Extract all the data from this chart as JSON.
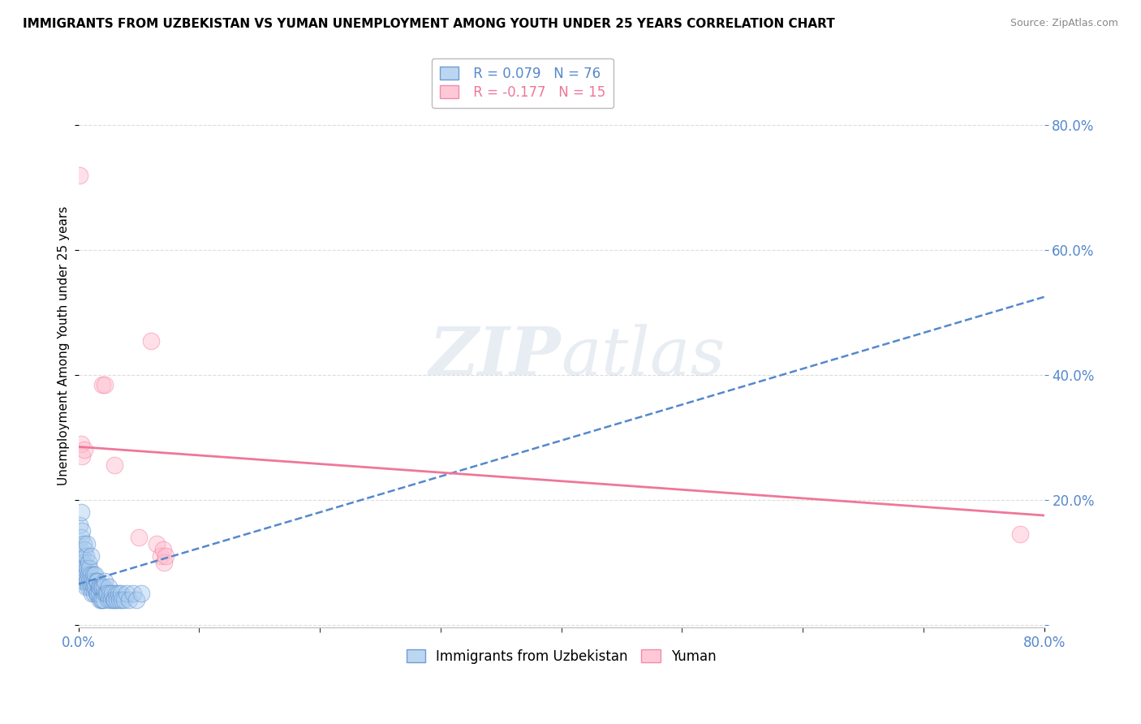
{
  "title": "IMMIGRANTS FROM UZBEKISTAN VS YUMAN UNEMPLOYMENT AMONG YOUTH UNDER 25 YEARS CORRELATION CHART",
  "source": "Source: ZipAtlas.com",
  "ylabel": "Unemployment Among Youth under 25 years",
  "legend_labels": [
    "Immigrants from Uzbekistan",
    "Yuman"
  ],
  "legend_r_blue": "R = 0.079",
  "legend_n_blue": "N = 76",
  "legend_r_pink": "R = -0.177",
  "legend_n_pink": "N = 15",
  "blue_face": "#AACCEE",
  "blue_edge": "#5588CC",
  "blue_line": "#5588CC",
  "pink_face": "#FFBBCC",
  "pink_edge": "#EE7799",
  "pink_line": "#EE7799",
  "xlim": [
    0.0,
    0.8
  ],
  "ylim": [
    -0.005,
    0.9
  ],
  "yticks": [
    0.0,
    0.2,
    0.4,
    0.6,
    0.8
  ],
  "xtick_positions": [
    0.0,
    0.8
  ],
  "xtick_labels": [
    "0.0%",
    "80.0%"
  ],
  "blue_x": [
    0.001,
    0.001,
    0.001,
    0.002,
    0.002,
    0.002,
    0.002,
    0.003,
    0.003,
    0.003,
    0.003,
    0.004,
    0.004,
    0.004,
    0.005,
    0.005,
    0.005,
    0.006,
    0.006,
    0.006,
    0.007,
    0.007,
    0.007,
    0.008,
    0.008,
    0.008,
    0.009,
    0.009,
    0.01,
    0.01,
    0.01,
    0.011,
    0.011,
    0.012,
    0.012,
    0.013,
    0.013,
    0.014,
    0.014,
    0.015,
    0.015,
    0.016,
    0.016,
    0.017,
    0.017,
    0.018,
    0.018,
    0.019,
    0.019,
    0.02,
    0.02,
    0.021,
    0.021,
    0.022,
    0.022,
    0.023,
    0.024,
    0.025,
    0.025,
    0.026,
    0.027,
    0.028,
    0.029,
    0.03,
    0.031,
    0.032,
    0.033,
    0.034,
    0.035,
    0.036,
    0.038,
    0.04,
    0.042,
    0.045,
    0.048,
    0.052
  ],
  "blue_y": [
    0.08,
    0.12,
    0.16,
    0.09,
    0.1,
    0.14,
    0.18,
    0.07,
    0.09,
    0.11,
    0.15,
    0.08,
    0.1,
    0.13,
    0.07,
    0.09,
    0.12,
    0.06,
    0.08,
    0.11,
    0.07,
    0.09,
    0.13,
    0.06,
    0.08,
    0.1,
    0.07,
    0.09,
    0.06,
    0.08,
    0.11,
    0.05,
    0.07,
    0.06,
    0.08,
    0.05,
    0.07,
    0.06,
    0.08,
    0.05,
    0.07,
    0.05,
    0.07,
    0.05,
    0.06,
    0.04,
    0.06,
    0.04,
    0.06,
    0.04,
    0.06,
    0.04,
    0.06,
    0.05,
    0.07,
    0.05,
    0.05,
    0.04,
    0.06,
    0.05,
    0.04,
    0.05,
    0.04,
    0.04,
    0.05,
    0.04,
    0.05,
    0.04,
    0.05,
    0.04,
    0.04,
    0.05,
    0.04,
    0.05,
    0.04,
    0.05
  ],
  "pink_x": [
    0.001,
    0.002,
    0.003,
    0.005,
    0.02,
    0.022,
    0.03,
    0.05,
    0.06,
    0.065,
    0.068,
    0.07,
    0.071,
    0.072,
    0.78
  ],
  "pink_y": [
    0.72,
    0.29,
    0.27,
    0.28,
    0.385,
    0.385,
    0.255,
    0.14,
    0.455,
    0.13,
    0.11,
    0.12,
    0.1,
    0.11,
    0.145
  ],
  "blue_trendline_x0": 0.0,
  "blue_trendline_x1": 0.8,
  "blue_trendline_y0": 0.065,
  "blue_trendline_y1": 0.525,
  "pink_trendline_x0": 0.0,
  "pink_trendline_x1": 0.8,
  "pink_trendline_y0": 0.285,
  "pink_trendline_y1": 0.175,
  "bg_color": "#FFFFFF",
  "grid_color": "#DDDDDD",
  "title_fontsize": 11,
  "ylabel_fontsize": 11,
  "tick_fontsize": 12,
  "legend_fontsize": 12,
  "scatter_size": 220,
  "scatter_alpha": 0.45,
  "right_tick_color": "#5588CC"
}
